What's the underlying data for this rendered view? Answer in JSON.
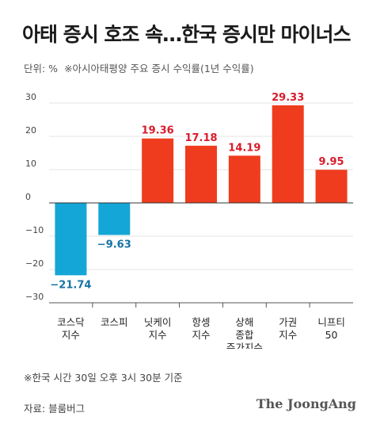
{
  "header": {
    "title": "아태 증시 호조 속…한국 증시만 마이너스",
    "unit": "단위: %",
    "note": "※아시아태평양 주요 증시 수익률(1년 수익률)"
  },
  "footer": {
    "footnote": "※한국 시간 30일 오후 3시 30분 기준",
    "source": "자료: 블룸버그",
    "brand": "The JoongAng"
  },
  "colors": {
    "positive": "#f03c1e",
    "negative": "#14a6d6",
    "positive_label": "#d81c2b",
    "negative_label": "#1573a6"
  },
  "chart_data": {
    "type": "bar",
    "categories": [
      [
        "코스닥",
        "지수"
      ],
      [
        "코스피"
      ],
      [
        "닛케이",
        "지수"
      ],
      [
        "항셍",
        "지수"
      ],
      [
        "상해",
        "종합",
        "주가지수"
      ],
      [
        "가권",
        "지수"
      ],
      [
        "니프티",
        "50"
      ]
    ],
    "values": [
      -21.74,
      -9.63,
      19.36,
      17.18,
      14.19,
      29.33,
      9.95
    ],
    "value_labels": [
      "−21.74",
      "−9.63",
      "19.36",
      "17.18",
      "14.19",
      "29.33",
      "9.95"
    ],
    "yticks": [
      {
        "value": 30,
        "label": "30"
      },
      {
        "value": 20,
        "label": "20"
      },
      {
        "value": 10,
        "label": "10"
      },
      {
        "value": 0,
        "label": "0"
      },
      {
        "value": -10,
        "label": "−10"
      },
      {
        "value": -20,
        "label": "−20"
      },
      {
        "value": -30,
        "label": "−30"
      }
    ],
    "ylim": [
      -30,
      30
    ],
    "grid": true
  }
}
